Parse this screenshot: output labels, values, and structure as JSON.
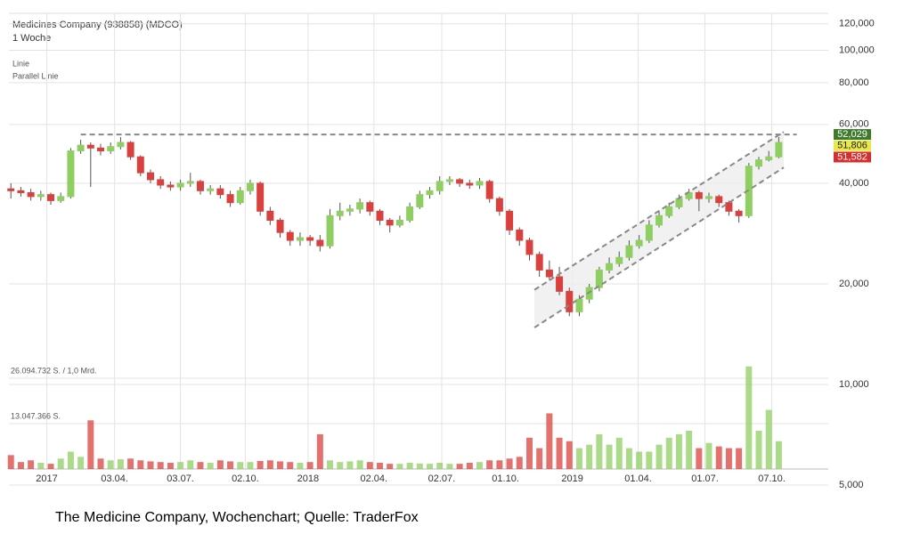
{
  "chart_data": {
    "type": "candlestick",
    "title": "Medicines Company (938858) (MDCO)",
    "subtitle": "1 Woche",
    "legend": [
      "Linie",
      "Parallel Linie"
    ],
    "caption": "The Medicine Company, Wochenchart; Quelle: TraderFox",
    "log_y": true,
    "grid": true,
    "up_color": "#8fcf62",
    "down_color": "#d9413e",
    "xlim": [
      -0.2,
      77.5
    ],
    "xticks": [
      {
        "value": 3.6,
        "label": "2017"
      },
      {
        "value": 10.4,
        "label": "03.04."
      },
      {
        "value": 17,
        "label": "03.07."
      },
      {
        "value": 23.5,
        "label": "02.10."
      },
      {
        "value": 29.8,
        "label": "2018"
      },
      {
        "value": 36.4,
        "label": "02.04."
      },
      {
        "value": 43.2,
        "label": "02.07."
      },
      {
        "value": 49.6,
        "label": "01.10."
      },
      {
        "value": 56.3,
        "label": "2019"
      },
      {
        "value": 62.9,
        "label": "01.04."
      },
      {
        "value": 69.6,
        "label": "01.07."
      },
      {
        "value": 76.3,
        "label": "07.10."
      }
    ],
    "ylim": [
      5000,
      129000
    ],
    "yticks": [
      {
        "value": 120000,
        "label": "120,000"
      },
      {
        "value": 100000,
        "label": "100,000"
      },
      {
        "value": 80000,
        "label": "80,000"
      },
      {
        "value": 60000,
        "label": "60,000"
      },
      {
        "value": 40000,
        "label": "40,000"
      },
      {
        "value": 20000,
        "label": "20,000"
      },
      {
        "value": 10000,
        "label": "10,000"
      },
      {
        "value": 5000,
        "label": "5,000"
      }
    ],
    "x": [
      0,
      1,
      2,
      3,
      4,
      5,
      6,
      7,
      8,
      9,
      10,
      11,
      12,
      13,
      14,
      15,
      16,
      17,
      18,
      19,
      20,
      21,
      22,
      23,
      24,
      25,
      26,
      27,
      28,
      29,
      30,
      31,
      32,
      33,
      34,
      35,
      36,
      37,
      38,
      39,
      40,
      41,
      42,
      43,
      44,
      45,
      46,
      47,
      48,
      49,
      50,
      51,
      52,
      53,
      54,
      55,
      56,
      57,
      58,
      59,
      60,
      61,
      62,
      63,
      64,
      65,
      66,
      67,
      68,
      69,
      70,
      71,
      72,
      73,
      74,
      75,
      76,
      77
    ],
    "open": [
      38500,
      38000,
      37500,
      36500,
      37000,
      35500,
      36500,
      50000,
      52000,
      51000,
      50000,
      51500,
      53000,
      48000,
      43000,
      41000,
      39500,
      39000,
      40000,
      40500,
      38000,
      38500,
      37000,
      35000,
      38000,
      40000,
      33000,
      31000,
      28500,
      27000,
      27500,
      27000,
      26000,
      32000,
      33000,
      33500,
      35000,
      33000,
      31000,
      30000,
      31000,
      34000,
      37000,
      38000,
      40500,
      41000,
      40000,
      39500,
      40500,
      36000,
      33000,
      29000,
      27000,
      24500,
      22000,
      21000,
      19000,
      16500,
      18000,
      19500,
      22000,
      23000,
      24000,
      26000,
      27000,
      30000,
      32000,
      34000,
      36000,
      37500,
      36000,
      36500,
      35000,
      33000,
      32000,
      45000,
      47000,
      48000
    ],
    "high": [
      40000,
      39000,
      38500,
      38000,
      37500,
      37500,
      51000,
      54000,
      53000,
      52500,
      53000,
      55000,
      53500,
      48500,
      44000,
      42000,
      40500,
      41000,
      43000,
      41000,
      39500,
      39500,
      38000,
      39000,
      41000,
      40500,
      34000,
      31500,
      29000,
      28500,
      28000,
      28000,
      33500,
      35000,
      34500,
      36000,
      35500,
      33500,
      31500,
      32000,
      35000,
      38000,
      39000,
      42000,
      42000,
      41500,
      41000,
      41500,
      41000,
      36500,
      33500,
      29500,
      27500,
      25000,
      23500,
      22500,
      19500,
      18500,
      20000,
      22500,
      24000,
      25000,
      27000,
      28000,
      31000,
      33000,
      35000,
      37000,
      38500,
      38000,
      37500,
      37000,
      35500,
      33500,
      46000,
      48000,
      50000,
      55000
    ],
    "low": [
      36000,
      36500,
      35500,
      35500,
      34500,
      35000,
      36000,
      49000,
      39000,
      48500,
      49000,
      50500,
      47000,
      42000,
      40000,
      38500,
      38000,
      38000,
      39000,
      37000,
      37000,
      36000,
      34000,
      34500,
      37000,
      32000,
      30000,
      27500,
      26000,
      26000,
      26000,
      25000,
      25500,
      31000,
      32000,
      32500,
      32000,
      30000,
      28500,
      29500,
      30500,
      33500,
      36000,
      37000,
      39500,
      39000,
      38500,
      38500,
      35000,
      32000,
      28000,
      26000,
      23500,
      21000,
      20500,
      18500,
      16000,
      16000,
      17500,
      19000,
      21500,
      22500,
      23500,
      25500,
      26500,
      29500,
      31500,
      33500,
      35500,
      33000,
      35000,
      34000,
      32000,
      30500,
      31500,
      44000,
      46500,
      47500
    ],
    "close": [
      38000,
      37500,
      36500,
      37000,
      35500,
      36500,
      50000,
      52000,
      51000,
      50000,
      51500,
      53000,
      48000,
      43000,
      41000,
      39500,
      39000,
      40000,
      40500,
      38000,
      38500,
      37000,
      35000,
      38000,
      40000,
      33000,
      31000,
      28500,
      27000,
      27500,
      27000,
      26000,
      32000,
      33000,
      33500,
      35000,
      33000,
      31000,
      30000,
      31000,
      34000,
      37000,
      38000,
      40500,
      41000,
      40000,
      39500,
      40500,
      36000,
      33000,
      29000,
      27000,
      24500,
      22000,
      21000,
      19000,
      16500,
      18000,
      19500,
      22000,
      23000,
      24000,
      26000,
      27000,
      30000,
      32000,
      34000,
      36000,
      37500,
      36000,
      36500,
      35000,
      33000,
      32000,
      45000,
      47000,
      48000,
      53000
    ],
    "volume": {
      "ylim": [
        0,
        26094732
      ],
      "yticks": [
        {
          "value": 26094732,
          "label": "26.094.732 S. / 1,0 Mrd."
        },
        {
          "value": 13047366,
          "label": "13.047.366 S."
        }
      ],
      "values": [
        4000000,
        2000000,
        2500000,
        1800000,
        1500000,
        3000000,
        5000000,
        3500000,
        14000000,
        3000000,
        2500000,
        2800000,
        3000000,
        2500000,
        2200000,
        2000000,
        1800000,
        2000000,
        2500000,
        2000000,
        1800000,
        2500000,
        2200000,
        2000000,
        2000000,
        2300000,
        2500000,
        2200000,
        2000000,
        1800000,
        2000000,
        10000000,
        2500000,
        2000000,
        2200000,
        2500000,
        2000000,
        1800000,
        1500000,
        1500000,
        1800000,
        1600000,
        1500000,
        1800000,
        1500000,
        1500000,
        1800000,
        2000000,
        2500000,
        2500000,
        3000000,
        3500000,
        9000000,
        6000000,
        16000000,
        9000000,
        8000000,
        6000000,
        7000000,
        10000000,
        7000000,
        9000000,
        6000000,
        5000000,
        5000000,
        7000000,
        9000000,
        10000000,
        11000000,
        6000000,
        7500000,
        6500000,
        6000000,
        6000000,
        29500000,
        11000000,
        17000000,
        8000000
      ]
    },
    "trend_lines": [
      {
        "x": [
          7,
          78.8
        ],
        "y": [
          56000,
          56000
        ]
      },
      {
        "x": [
          52.5,
          77.5
        ],
        "y": [
          19200,
          57000
        ]
      },
      {
        "x": [
          52.5,
          77.5
        ],
        "y": [
          14800,
          44600
        ]
      }
    ],
    "price_tags": [
      {
        "value": 52029,
        "label": "52,029",
        "color": "#3d7a2a"
      },
      {
        "value": 51806,
        "label": "51,806",
        "color": "#e8e84a"
      },
      {
        "value": 51582,
        "label": "51,582",
        "color": "#d32f2f"
      }
    ]
  }
}
